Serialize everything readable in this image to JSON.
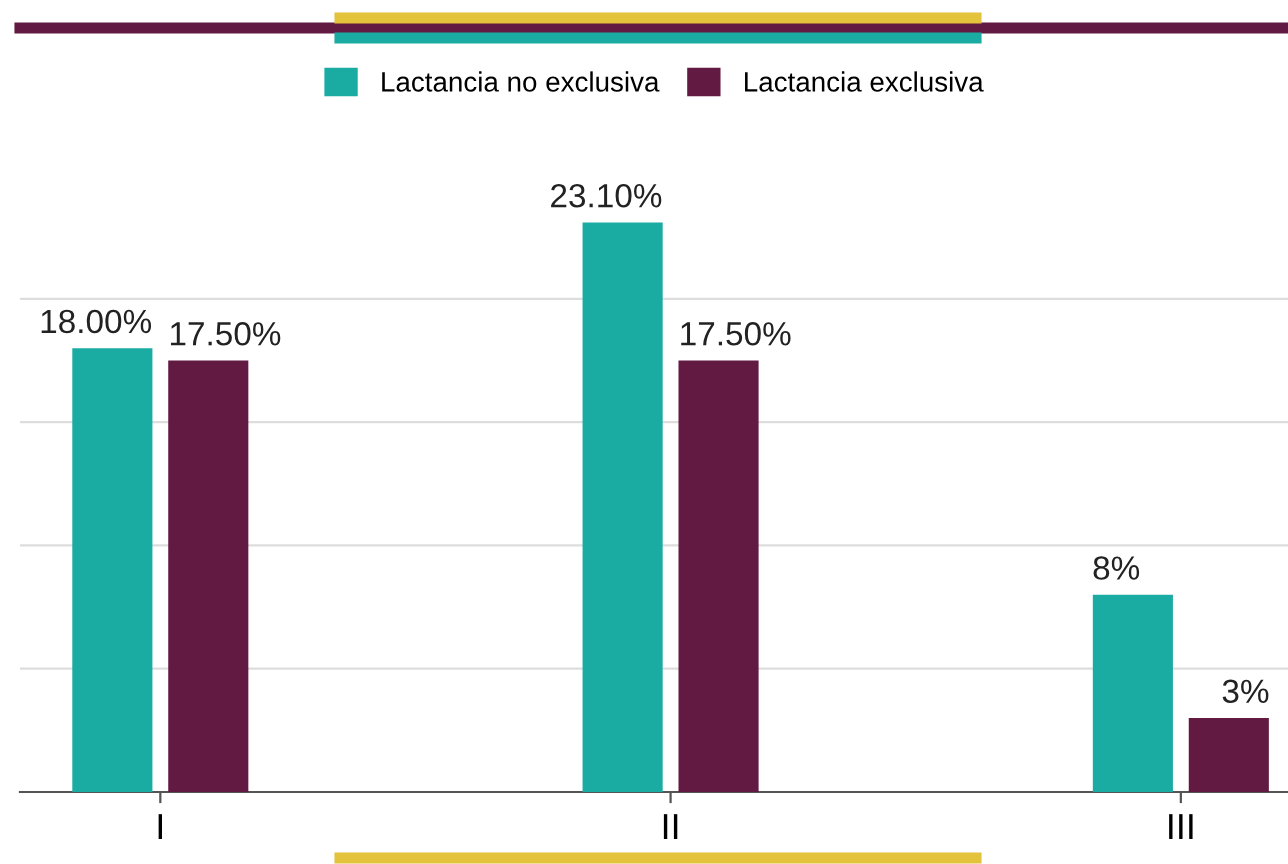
{
  "chart_data": {
    "type": "bar",
    "categories": [
      "I",
      "II",
      "III"
    ],
    "series": [
      {
        "name": "Lactancia no exclusiva",
        "color": "#1aaba3",
        "values": [
          18,
          23.1,
          8
        ],
        "value_labels": [
          "18.00%",
          "23.10%",
          "8%"
        ]
      },
      {
        "name": "Lactancia exclusiva",
        "color": "#631a42",
        "values": [
          17.5,
          17.5,
          3
        ],
        "value_labels": [
          "17.50%",
          "17.50%",
          "3%"
        ]
      }
    ],
    "yticks": [
      {
        "value": 0,
        "label": null
      },
      {
        "value": 5,
        "label": null
      },
      {
        "value": 10,
        "label": null
      },
      {
        "value": 15,
        "label": null
      },
      {
        "value": 20,
        "label": null
      }
    ],
    "tick_labels": "x",
    "grid": "y",
    "legend": "top"
  }
}
